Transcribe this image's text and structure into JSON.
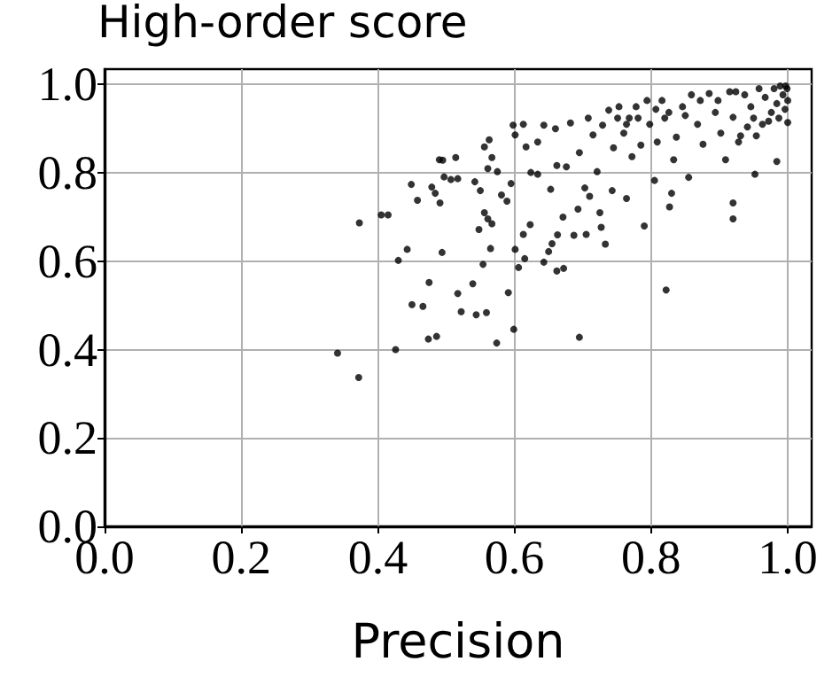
{
  "chart_data": {
    "type": "scatter",
    "title": "High-order score",
    "xlabel": "Precision",
    "xlim": [
      0,
      1.035
    ],
    "ylim": [
      0,
      1.035
    ],
    "xticks": [
      {
        "value": 0,
        "label": "0.0"
      },
      {
        "value": 0.2,
        "label": "0.2"
      },
      {
        "value": 0.4,
        "label": "0.4"
      },
      {
        "value": 0.6,
        "label": "0.6"
      },
      {
        "value": 0.8,
        "label": "0.8"
      },
      {
        "value": 1,
        "label": "1.0"
      }
    ],
    "yticks": [
      {
        "value": 0,
        "label": "0.0"
      },
      {
        "value": 0.2,
        "label": "0.2"
      },
      {
        "value": 0.4,
        "label": "0.4"
      },
      {
        "value": 0.6,
        "label": "0.6"
      },
      {
        "value": 0.8,
        "label": "0.8"
      },
      {
        "value": 1,
        "label": "1.0"
      }
    ],
    "grid": true,
    "marker": "circle",
    "series": [
      {
        "color": "#000000",
        "x": [
          0.341,
          0.372,
          0.373,
          0.405,
          0.415,
          0.426,
          0.43,
          0.443,
          0.449,
          0.458,
          0.45,
          0.466,
          0.474,
          0.475,
          0.479,
          0.484,
          0.486,
          0.491,
          0.494,
          0.49,
          0.495,
          0.497,
          0.507,
          0.514,
          0.517,
          0.517,
          0.522,
          0.539,
          0.544,
          0.559,
          0.548,
          0.554,
          0.542,
          0.55,
          0.556,
          0.561,
          0.567,
          0.565,
          0.574,
          0.591,
          0.599,
          0.601,
          0.606,
          0.615,
          0.613,
          0.623,
          0.643,
          0.65,
          0.655,
          0.662,
          0.672,
          0.663,
          0.671,
          0.695,
          0.687,
          0.693,
          0.705,
          0.71,
          0.725,
          0.727,
          0.733,
          0.743,
          0.764,
          0.805,
          0.79,
          0.827,
          0.822,
          0.83,
          0.92,
          0.92,
          0.952,
          0.984,
          1.0,
          0.556,
          0.563,
          0.567,
          0.561,
          0.575,
          0.581,
          0.589,
          0.595,
          0.598,
          0.601,
          0.613,
          0.617,
          0.624,
          0.634,
          0.634,
          0.643,
          0.653,
          0.66,
          0.662,
          0.676,
          0.682,
          0.695,
          0.703,
          0.708,
          0.715,
          0.721,
          0.729,
          0.738,
          0.745,
          0.753,
          0.76,
          0.768,
          0.772,
          0.778,
          0.785,
          0.794,
          0.798,
          0.809,
          0.816,
          0.82,
          0.833,
          0.837,
          0.846,
          0.855,
          0.859,
          0.868,
          0.876,
          0.885,
          0.894,
          0.902,
          0.909,
          0.915,
          0.92,
          0.928,
          0.937,
          0.946,
          0.954,
          0.958,
          0.967,
          0.976,
          0.98,
          0.984,
          0.989,
          0.993,
          0.996,
          0.999,
          1.0,
          0.997,
          0.987,
          0.972,
          0.963,
          0.95,
          0.941,
          0.931,
          0.924,
          0.898,
          0.872,
          0.85,
          0.826,
          0.807,
          0.781,
          0.764,
          0.751
        ],
        "values": [
          0.392,
          0.337,
          0.687,
          0.705,
          0.705,
          0.4,
          0.602,
          0.627,
          0.774,
          0.738,
          0.502,
          0.498,
          0.424,
          0.552,
          0.768,
          0.754,
          0.43,
          0.732,
          0.62,
          0.83,
          0.829,
          0.791,
          0.785,
          0.835,
          0.787,
          0.527,
          0.486,
          0.549,
          0.479,
          0.484,
          0.672,
          0.593,
          0.78,
          0.76,
          0.71,
          0.696,
          0.685,
          0.629,
          0.415,
          0.529,
          0.446,
          0.627,
          0.586,
          0.606,
          0.661,
          0.683,
          0.598,
          0.622,
          0.64,
          0.578,
          0.584,
          0.66,
          0.7,
          0.428,
          0.659,
          0.718,
          0.661,
          0.747,
          0.71,
          0.677,
          0.639,
          0.76,
          0.742,
          0.783,
          0.68,
          0.723,
          0.535,
          0.754,
          0.732,
          0.696,
          0.797,
          0.826,
          0.914,
          0.859,
          0.875,
          0.835,
          0.81,
          0.803,
          0.75,
          0.736,
          0.776,
          0.908,
          0.886,
          0.91,
          0.859,
          0.801,
          0.87,
          0.797,
          0.908,
          0.763,
          0.9,
          0.817,
          0.814,
          0.913,
          0.846,
          0.766,
          0.924,
          0.886,
          0.803,
          0.908,
          0.942,
          0.857,
          0.95,
          0.89,
          0.924,
          0.837,
          0.95,
          0.863,
          0.964,
          0.91,
          0.87,
          0.964,
          0.924,
          0.83,
          0.881,
          0.95,
          0.79,
          0.977,
          0.91,
          0.865,
          0.98,
          0.937,
          0.89,
          0.83,
          0.984,
          0.926,
          0.87,
          0.977,
          0.95,
          0.884,
          0.991,
          0.971,
          0.937,
          0.991,
          0.957,
          0.997,
          0.977,
          0.944,
          0.991,
          0.964,
          0.997,
          0.924,
          0.917,
          0.91,
          0.924,
          0.904,
          0.884,
          0.984,
          0.964,
          0.964,
          0.93,
          0.937,
          0.944,
          0.924,
          0.91,
          0.924
        ]
      }
    ]
  }
}
